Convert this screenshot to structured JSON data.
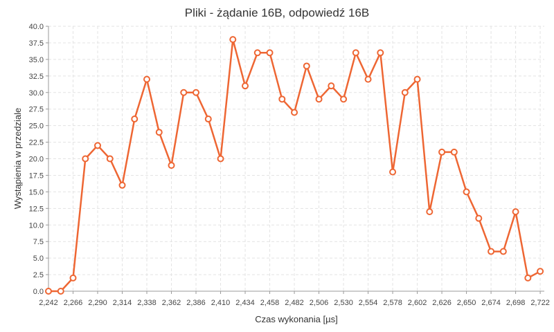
{
  "chart_data": {
    "type": "line",
    "title": "Pliki - żądanie 16B, odpowiedź 16B",
    "xlabel": "Czas wykonania [µs]",
    "ylabel": "Wystąpienia w przedziale",
    "xlim": [
      2.242,
      2.726
    ],
    "ylim": [
      0,
      40
    ],
    "x_ticks": [
      "2,242",
      "2,266",
      "2,290",
      "2,314",
      "2,338",
      "2,362",
      "2,386",
      "2,410",
      "2,434",
      "2,458",
      "2,482",
      "2,506",
      "2,530",
      "2,554",
      "2,578",
      "2,602",
      "2,626",
      "2,650",
      "2,674",
      "2,698",
      "2,722"
    ],
    "x_tick_values": [
      2.242,
      2.266,
      2.29,
      2.314,
      2.338,
      2.362,
      2.386,
      2.41,
      2.434,
      2.458,
      2.482,
      2.506,
      2.53,
      2.554,
      2.578,
      2.602,
      2.626,
      2.65,
      2.674,
      2.698,
      2.722
    ],
    "y_ticks": [
      "0.0",
      "2.5",
      "5.0",
      "7.5",
      "10.0",
      "12.5",
      "15.0",
      "17.5",
      "20.0",
      "22.5",
      "25.0",
      "27.5",
      "30.0",
      "32.5",
      "35.0",
      "37.5",
      "40.0"
    ],
    "y_tick_values": [
      0,
      2.5,
      5,
      7.5,
      10,
      12.5,
      15,
      17.5,
      20,
      22.5,
      25,
      27.5,
      30,
      32.5,
      35,
      37.5,
      40
    ],
    "grid": true,
    "color": "#ee6633",
    "x": [
      2.242,
      2.254,
      2.266,
      2.278,
      2.29,
      2.302,
      2.314,
      2.326,
      2.338,
      2.35,
      2.362,
      2.374,
      2.386,
      2.398,
      2.41,
      2.422,
      2.434,
      2.446,
      2.458,
      2.47,
      2.482,
      2.494,
      2.506,
      2.518,
      2.53,
      2.542,
      2.554,
      2.566,
      2.578,
      2.59,
      2.602,
      2.614,
      2.626,
      2.638,
      2.65,
      2.662,
      2.674,
      2.686,
      2.698,
      2.71,
      2.722
    ],
    "y": [
      0,
      0,
      2,
      20,
      22,
      20,
      16,
      26,
      32,
      24,
      19,
      30,
      30,
      26,
      20,
      38,
      31,
      36,
      36,
      29,
      27,
      34,
      29,
      31,
      29,
      36,
      32,
      36,
      18,
      30,
      32,
      12,
      21,
      21,
      15,
      11,
      6,
      6,
      12,
      2,
      3
    ]
  }
}
